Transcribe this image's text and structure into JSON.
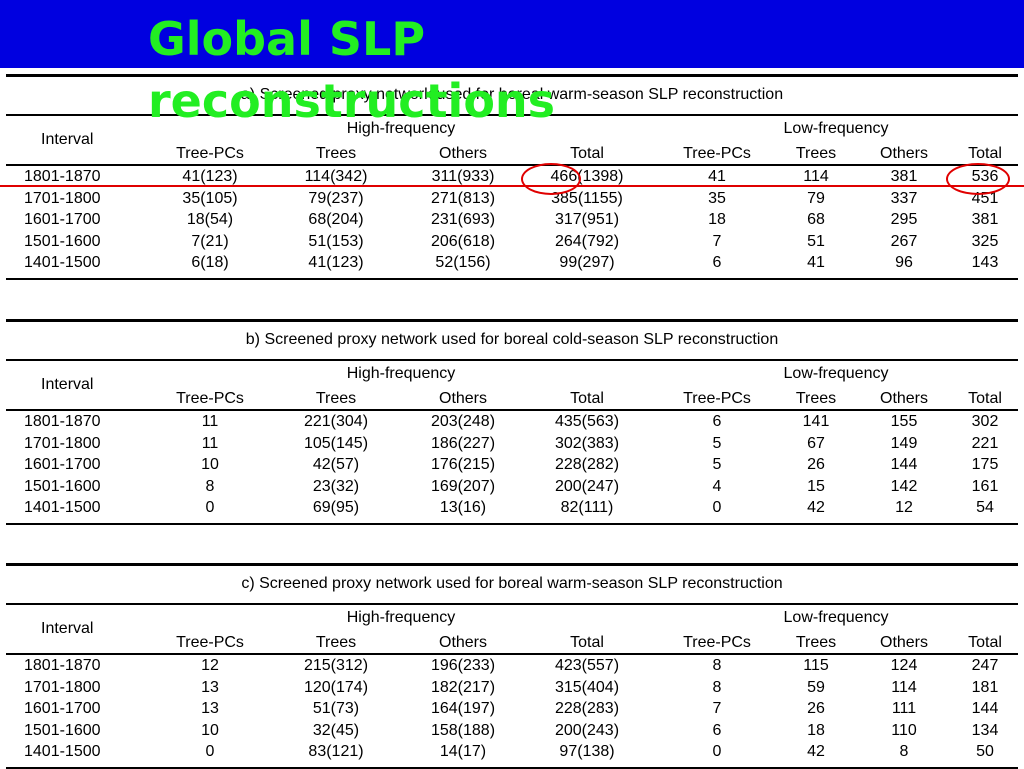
{
  "title": [
    "Global SLP",
    "reconstructions"
  ],
  "group_headers": {
    "high": "High-frequency",
    "low": "Low-frequency"
  },
  "columns": [
    "Interval",
    "Tree-PCs",
    "Trees",
    "Others",
    "Total",
    "Tree-PCs",
    "Trees",
    "Others",
    "Total"
  ],
  "tables": [
    {
      "caption": "a)   Screened proxy network used for boreal warm-season SLP reconstruction",
      "rows": [
        [
          "1801-1870",
          "41(123)",
          "114(342)",
          "311(933)",
          "466(1398)",
          "41",
          "114",
          "381",
          "536"
        ],
        [
          "1701-1800",
          "35(105)",
          "79(237)",
          "271(813)",
          "385(1155)",
          "35",
          "79",
          "337",
          "451"
        ],
        [
          "1601-1700",
          "18(54)",
          "68(204)",
          "231(693)",
          "317(951)",
          "18",
          "68",
          "295",
          "381"
        ],
        [
          "1501-1600",
          "7(21)",
          "51(153)",
          "206(618)",
          "264(792)",
          "7",
          "51",
          "267",
          "325"
        ],
        [
          "1401-1500",
          "6(18)",
          "41(123)",
          "52(156)",
          "99(297)",
          "6",
          "41",
          "96",
          "143"
        ]
      ]
    },
    {
      "caption": "b)  Screened proxy network used for boreal cold-season SLP reconstruction",
      "rows": [
        [
          "1801-1870",
          "11",
          "221(304)",
          "203(248)",
          "435(563)",
          "6",
          "141",
          "155",
          "302"
        ],
        [
          "1701-1800",
          "11",
          "105(145)",
          "186(227)",
          "302(383)",
          "5",
          "67",
          "149",
          "221"
        ],
        [
          "1601-1700",
          "10",
          "42(57)",
          "176(215)",
          "228(282)",
          "5",
          "26",
          "144",
          "175"
        ],
        [
          "1501-1600",
          "8",
          "23(32)",
          "169(207)",
          "200(247)",
          "4",
          "15",
          "142",
          "161"
        ],
        [
          "1401-1500",
          "0",
          "69(95)",
          "13(16)",
          "82(111)",
          "0",
          "42",
          "12",
          "54"
        ]
      ]
    },
    {
      "caption": "c)  Screened proxy network used for boreal warm-season SLP reconstruction",
      "rows": [
        [
          "1801-1870",
          "12",
          "215(312)",
          "196(233)",
          "423(557)",
          "8",
          "115",
          "124",
          "247"
        ],
        [
          "1701-1800",
          "13",
          "120(174)",
          "182(217)",
          "315(404)",
          "8",
          "59",
          "114",
          "181"
        ],
        [
          "1601-1700",
          "13",
          "51(73)",
          "164(197)",
          "228(283)",
          "7",
          "26",
          "111",
          "144"
        ],
        [
          "1501-1600",
          "10",
          "32(45)",
          "158(188)",
          "200(243)",
          "6",
          "18",
          "110",
          "134"
        ],
        [
          "1401-1500",
          "0",
          "83(121)",
          "14(17)",
          "97(138)",
          "0",
          "42",
          "8",
          "50"
        ]
      ]
    }
  ],
  "colors": {
    "banner": "#0000e0",
    "title": "#22ee22",
    "annotation": "#e00000"
  }
}
